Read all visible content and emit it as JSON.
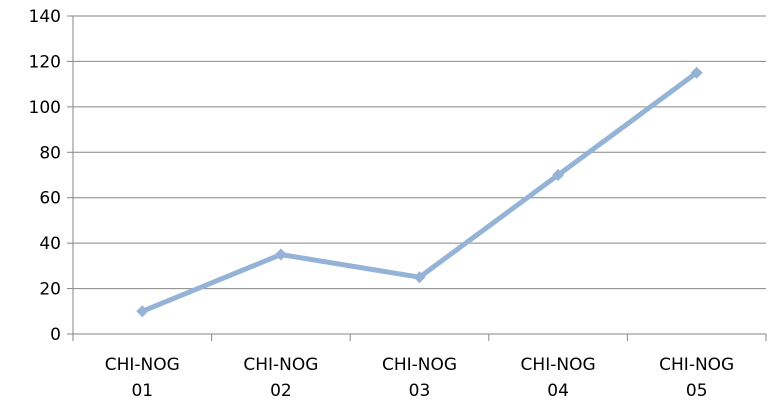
{
  "chart_data": {
    "type": "line",
    "title": "",
    "xlabel": "",
    "ylabel": "",
    "categories": [
      [
        "CHI-NOG",
        "01"
      ],
      [
        "CHI-NOG",
        "02"
      ],
      [
        "CHI-NOG",
        "03"
      ],
      [
        "CHI-NOG",
        "04"
      ],
      [
        "CHI-NOG",
        "05"
      ]
    ],
    "series": [
      {
        "values": [
          10,
          35,
          25,
          70,
          115
        ],
        "color": "#95B3D7",
        "marker": "diamond"
      }
    ],
    "ylim": [
      0,
      140
    ],
    "yticks": [
      0,
      20,
      40,
      60,
      80,
      100,
      120,
      140
    ],
    "grid": true,
    "legend": "none"
  }
}
